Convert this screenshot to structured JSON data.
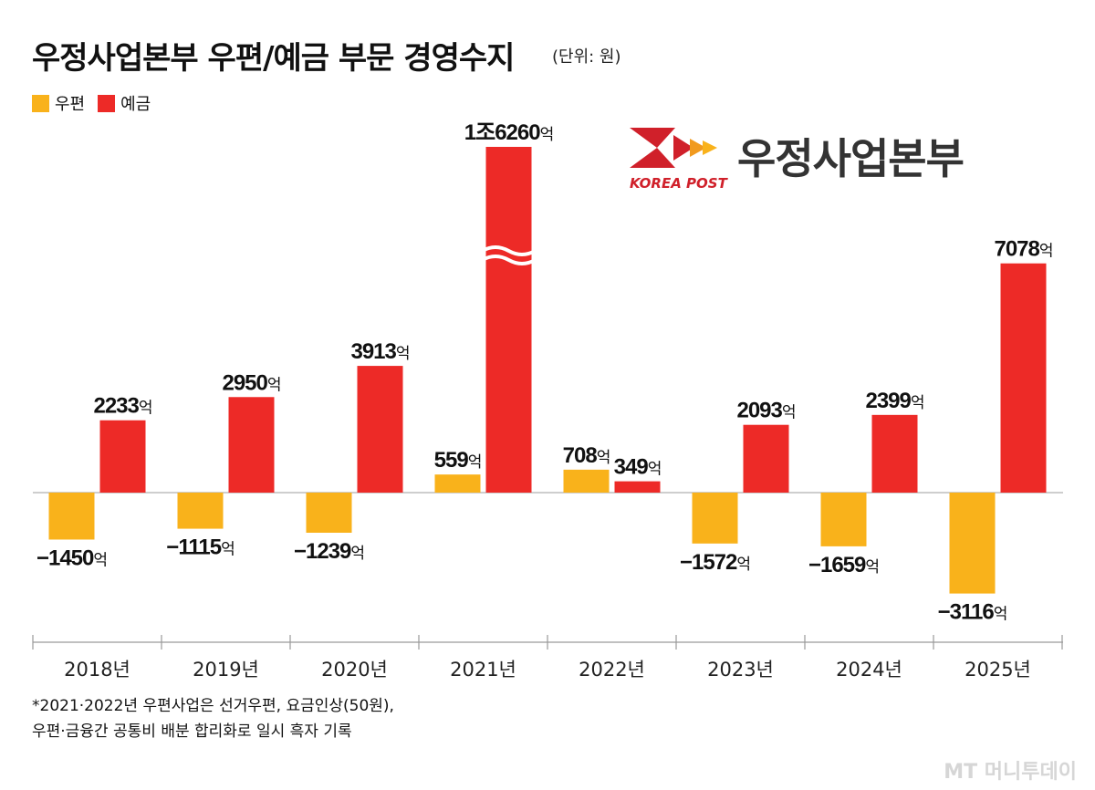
{
  "title": "우정사업본부 우편/예금 부문 경영수지",
  "unit": "(단위: 원)",
  "legend": [
    {
      "label": "우편",
      "color": "#f9b21b"
    },
    {
      "label": "예금",
      "color": "#ed2a27"
    }
  ],
  "logo": {
    "name": "우정사업본부",
    "sub": "KOREA POST"
  },
  "chart_data": {
    "type": "bar",
    "categories": [
      "2018년",
      "2019년",
      "2020년",
      "2021년",
      "2022년",
      "2023년",
      "2024년",
      "2025년"
    ],
    "series": [
      {
        "name": "우편",
        "color": "#f9b21b",
        "values": [
          -1450,
          -1115,
          -1239,
          559,
          708,
          -1572,
          -1659,
          -3116
        ],
        "labels": [
          "−1450",
          "−1115",
          "−1239",
          "559",
          "708",
          "−1572",
          "−1659",
          "−3116"
        ]
      },
      {
        "name": "예금",
        "color": "#ed2a27",
        "values": [
          2233,
          2950,
          3913,
          16260,
          349,
          2093,
          2399,
          7078
        ],
        "labels": [
          "2233",
          "2950",
          "3913",
          "1조6260",
          "349",
          "2093",
          "2399",
          "7078"
        ]
      }
    ],
    "label_suffix": "억",
    "axis_break": {
      "category": "2021년",
      "series": "예금"
    },
    "ylabel": "",
    "xlabel": ""
  },
  "footnote": [
    "*2021·2022년 우편사업은 선거우편, 요금인상(50원),",
    "우편·금융간 공통비 배분 합리화로 일시 흑자 기록"
  ],
  "credit": "MT 머니투데이"
}
